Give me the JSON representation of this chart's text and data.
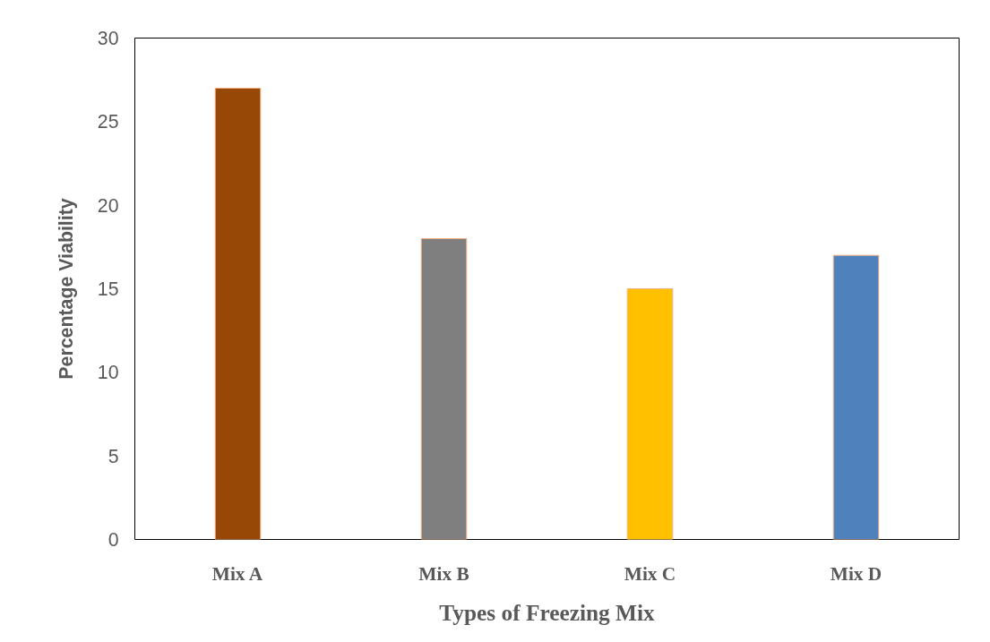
{
  "chart_data": {
    "type": "bar",
    "xlabel": "Types of Freezing Mix",
    "ylabel": "Percentage Viability",
    "categories": [
      "Mix A",
      "Mix B",
      "Mix C",
      "Mix D"
    ],
    "values": [
      27,
      18,
      15,
      17
    ],
    "colors": [
      "#974706",
      "#7f7f7f",
      "#ffc000",
      "#4f81bd"
    ],
    "ylim": [
      0,
      30
    ],
    "yticks": [
      0,
      5,
      10,
      15,
      20,
      25,
      30
    ],
    "grid": false
  }
}
